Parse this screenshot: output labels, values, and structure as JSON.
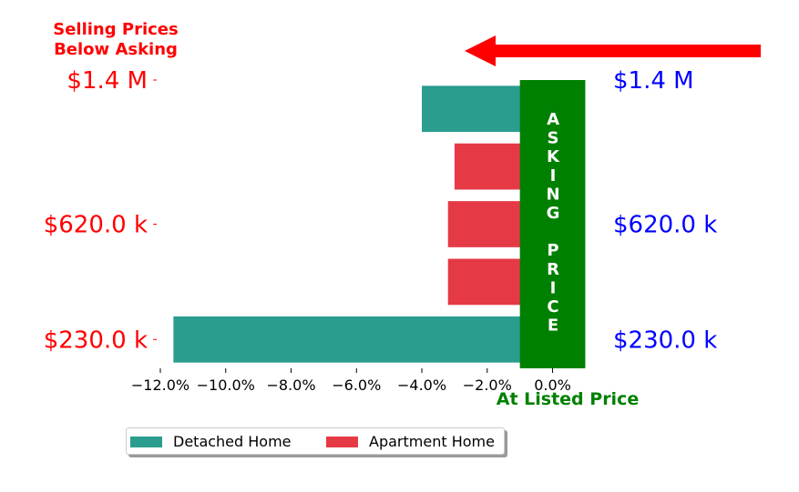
{
  "chart_data": {
    "type": "bar",
    "orientation": "horizontal",
    "categories": [
      "$230.0 k",
      "",
      "$620.0 k",
      "",
      "$1.4 M"
    ],
    "left_tick_labels": [
      "$230.0 k",
      "$620.0 k",
      "$1.4 M"
    ],
    "right_tick_labels": [
      "$230.0 k",
      "$620.0 k",
      "$1.4 M"
    ],
    "bars": [
      {
        "value": -11.6,
        "series": "Detached Home"
      },
      {
        "value": -3.2,
        "series": "Apartment Home"
      },
      {
        "value": -3.2,
        "series": "Apartment Home"
      },
      {
        "value": -3.0,
        "series": "Apartment Home"
      },
      {
        "value": -4.0,
        "series": "Detached Home"
      }
    ],
    "series": [
      {
        "name": "Detached Home",
        "color": "#2a9d8f"
      },
      {
        "name": "Apartment Home",
        "color": "#e63946"
      }
    ],
    "x_ticks": [
      "−12.0%",
      "−10.0%",
      "−8.0%",
      "−6.0%",
      "−4.0%",
      "−2.0%",
      "0.0%"
    ],
    "x_tick_values": [
      -12,
      -10,
      -8,
      -6,
      -4,
      -2,
      0
    ],
    "xlim": [
      -12,
      1.1
    ],
    "annotation_left": [
      "Selling Prices",
      "Below Asking"
    ],
    "annotation_bottom": "At Listed Price",
    "asking_band_letters": [
      "A",
      "S",
      "K",
      "I",
      "N",
      "G",
      "",
      "P",
      "R",
      "I",
      "C",
      "E"
    ],
    "asking_band_range": [
      -1.0,
      1.0
    ],
    "arrow_direction": "left",
    "colors": {
      "left_axis_text": "#ff0000",
      "right_axis_text": "#0000ff",
      "asking_band": "#008000",
      "bottom_annotation": "#008000",
      "top_annotation": "#ff0000",
      "arrow": "#ff0000"
    },
    "legend_position": "bottom-left",
    "grid": false
  }
}
